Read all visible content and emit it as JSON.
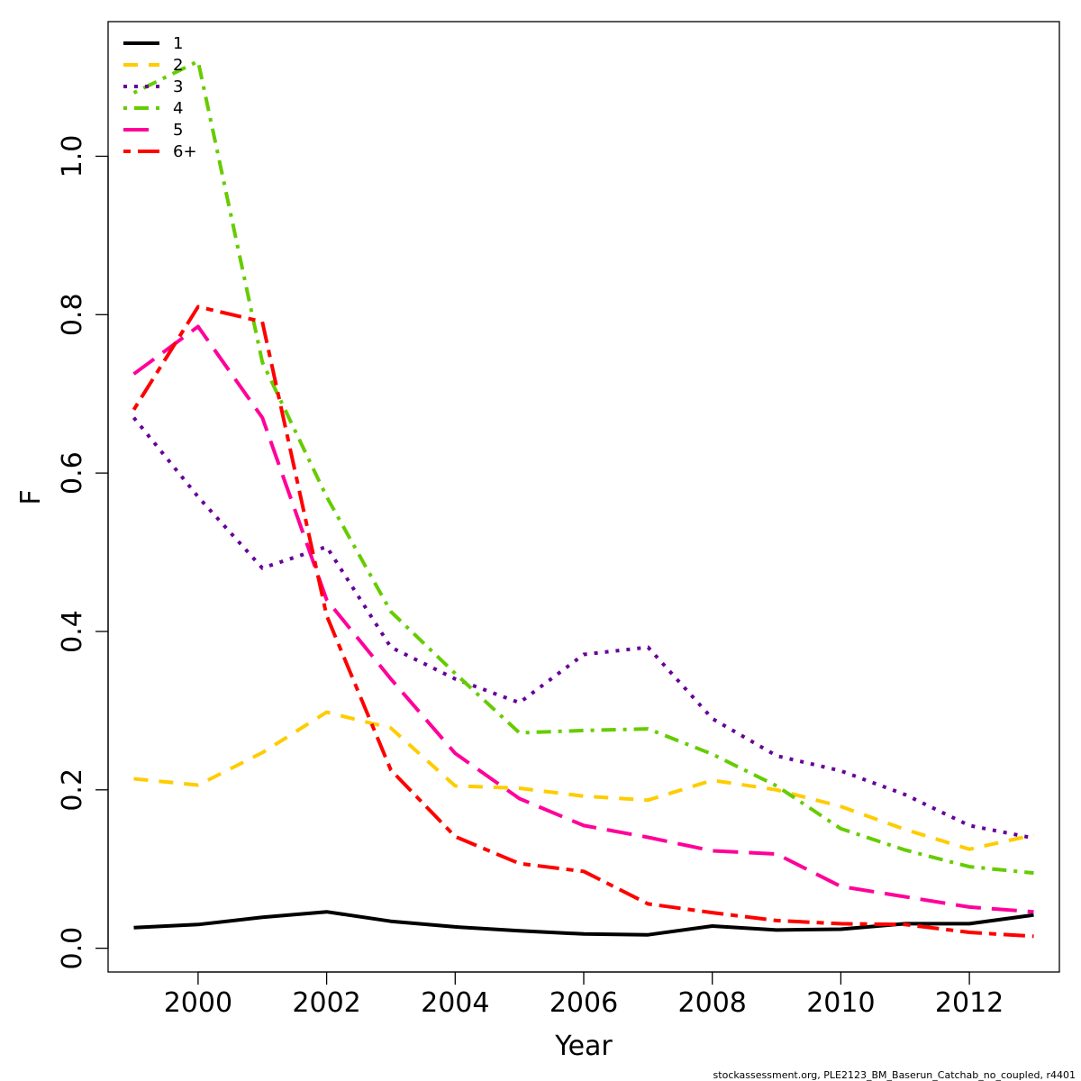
{
  "chart_data": {
    "type": "line",
    "xlabel": "Year",
    "ylabel": "F",
    "xlim": [
      1998.6,
      2013.4
    ],
    "ylim": [
      -0.03,
      1.17
    ],
    "xticks": [
      2000,
      2002,
      2004,
      2006,
      2008,
      2010,
      2012
    ],
    "yticks": [
      0.0,
      0.2,
      0.4,
      0.6,
      0.8,
      1.0
    ],
    "ytick_labels": [
      "0.0",
      "0.2",
      "0.4",
      "0.6",
      "0.8",
      "1.0"
    ],
    "grid": false,
    "legend_position": "top-left",
    "x": [
      1999,
      2000,
      2001,
      2002,
      2003,
      2004,
      2005,
      2006,
      2007,
      2008,
      2009,
      2010,
      2011,
      2012,
      2013
    ],
    "series": [
      {
        "name": "1",
        "color": "#000000",
        "dash": "solid",
        "values": [
          0.026,
          0.03,
          0.039,
          0.046,
          0.034,
          0.027,
          0.022,
          0.018,
          0.017,
          0.028,
          0.023,
          0.024,
          0.031,
          0.031,
          0.042
        ]
      },
      {
        "name": "2",
        "color": "#FFCC00",
        "dash": "dashed",
        "values": [
          0.214,
          0.206,
          0.247,
          0.298,
          0.278,
          0.205,
          0.202,
          0.192,
          0.187,
          0.212,
          0.2,
          0.179,
          0.15,
          0.125,
          0.143
        ]
      },
      {
        "name": "3",
        "color": "#660099",
        "dash": "dotted",
        "values": [
          0.67,
          0.57,
          0.48,
          0.507,
          0.38,
          0.34,
          0.31,
          0.371,
          0.38,
          0.29,
          0.243,
          0.224,
          0.194,
          0.155,
          0.139
        ]
      },
      {
        "name": "4",
        "color": "#66CC00",
        "dash": "dotdash",
        "values": [
          1.08,
          1.12,
          0.74,
          0.57,
          0.425,
          0.347,
          0.272,
          0.275,
          0.277,
          0.245,
          0.205,
          0.151,
          0.124,
          0.103,
          0.095
        ]
      },
      {
        "name": "5",
        "color": "#FF0099",
        "dash": "longdash",
        "values": [
          0.725,
          0.785,
          0.67,
          0.44,
          0.34,
          0.246,
          0.189,
          0.155,
          0.14,
          0.123,
          0.119,
          0.078,
          0.065,
          0.052,
          0.046
        ]
      },
      {
        "name": "6+",
        "color": "#FF0000",
        "dash": "twodash",
        "values": [
          0.68,
          0.81,
          0.791,
          0.42,
          0.225,
          0.141,
          0.107,
          0.097,
          0.056,
          0.045,
          0.035,
          0.031,
          0.03,
          0.02,
          0.015
        ]
      }
    ]
  },
  "footer": "stockassessment.org, PLE2123_BM_Baserun_Catchab_no_coupled, r4401"
}
